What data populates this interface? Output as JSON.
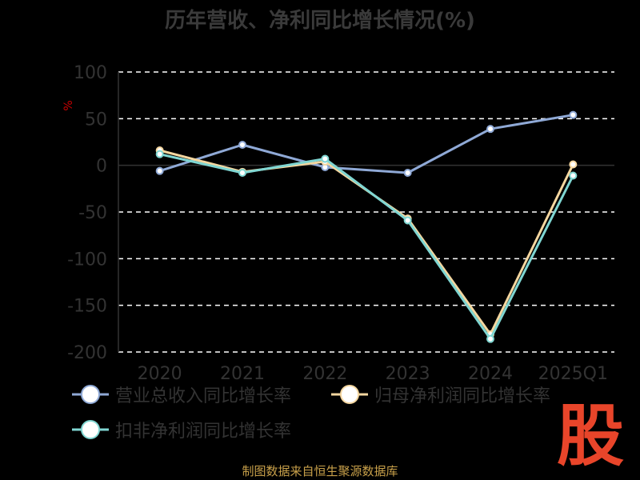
{
  "chart_data": {
    "type": "line",
    "title": "历年营收、净利同比增长情况(%)",
    "ylabel": "%",
    "categories": [
      "2020",
      "2021",
      "2022",
      "2023",
      "2024",
      "2025Q1"
    ],
    "ylim": [
      -200,
      100
    ],
    "yticks": [
      100,
      50,
      0,
      -50,
      -100,
      -150,
      -200
    ],
    "grid": true,
    "legend_position": "bottom",
    "series": [
      {
        "name": "营业总收入同比增长率",
        "values": [
          -6,
          22,
          -2,
          -8,
          39,
          54
        ],
        "color": "#8fa9d6"
      },
      {
        "name": "归母净利润同比增长率",
        "values": [
          16,
          -7,
          4,
          -57,
          -181,
          1
        ],
        "color": "#f5d7a0"
      },
      {
        "name": "扣非净利润同比增长率",
        "values": [
          12,
          -8,
          7,
          -59,
          -186,
          -11
        ],
        "color": "#7fd6d2"
      }
    ]
  },
  "source_text": "制图数据来自恒生聚源数据库",
  "logo_text": "股"
}
